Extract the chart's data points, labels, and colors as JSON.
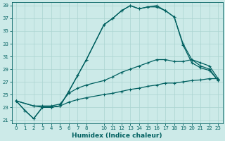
{
  "xlabel": "Humidex (Indice chaleur)",
  "bg_color": "#cceae8",
  "grid_color": "#aad4d0",
  "line_color": "#006060",
  "xlim": [
    -0.5,
    23.5
  ],
  "ylim": [
    20.5,
    39.5
  ],
  "xticks": [
    0,
    1,
    2,
    3,
    4,
    5,
    6,
    7,
    8,
    10,
    11,
    12,
    13,
    14,
    15,
    16,
    17,
    18,
    19,
    20,
    21,
    22,
    23
  ],
  "yticks": [
    21,
    23,
    25,
    27,
    29,
    31,
    33,
    35,
    37,
    39
  ],
  "line1_x": [
    0,
    1,
    2,
    3,
    4,
    5,
    6,
    7,
    8,
    10,
    11,
    12,
    13,
    14,
    15,
    16,
    17,
    18,
    19,
    20,
    21,
    22,
    23
  ],
  "line1_y": [
    24.0,
    22.5,
    21.2,
    23.0,
    23.0,
    23.2,
    25.5,
    28.0,
    30.5,
    36.0,
    37.0,
    38.2,
    39.0,
    38.5,
    38.8,
    39.0,
    38.2,
    37.2,
    33.0,
    30.5,
    29.5,
    29.0,
    27.2
  ],
  "line2_x": [
    0,
    1,
    2,
    3,
    4,
    5,
    6,
    7,
    8,
    10,
    11,
    12,
    13,
    14,
    15,
    16,
    17,
    18,
    19,
    20,
    21,
    22,
    23
  ],
  "line2_y": [
    24.0,
    22.5,
    21.2,
    23.0,
    23.0,
    23.2,
    25.5,
    28.0,
    30.5,
    36.0,
    37.0,
    38.2,
    39.0,
    38.5,
    38.8,
    38.8,
    38.2,
    37.2,
    32.8,
    30.0,
    29.2,
    28.8,
    27.2
  ],
  "line3_x": [
    0,
    2,
    3,
    4,
    5,
    6,
    7,
    8,
    10,
    11,
    12,
    13,
    14,
    15,
    16,
    17,
    18,
    19,
    20,
    21,
    22,
    23
  ],
  "line3_y": [
    24.0,
    23.2,
    23.2,
    23.2,
    23.5,
    25.2,
    26.0,
    26.5,
    27.2,
    27.8,
    28.5,
    29.0,
    29.5,
    30.0,
    30.5,
    30.5,
    30.2,
    30.2,
    30.5,
    30.0,
    29.5,
    27.5
  ],
  "line4_x": [
    0,
    2,
    3,
    4,
    5,
    6,
    7,
    8,
    10,
    11,
    12,
    13,
    14,
    15,
    16,
    17,
    18,
    19,
    20,
    21,
    22,
    23
  ],
  "line4_y": [
    24.0,
    23.2,
    23.0,
    23.0,
    23.2,
    23.8,
    24.2,
    24.5,
    25.0,
    25.2,
    25.5,
    25.8,
    26.0,
    26.3,
    26.5,
    26.8,
    26.8,
    27.0,
    27.2,
    27.3,
    27.5,
    27.5
  ]
}
